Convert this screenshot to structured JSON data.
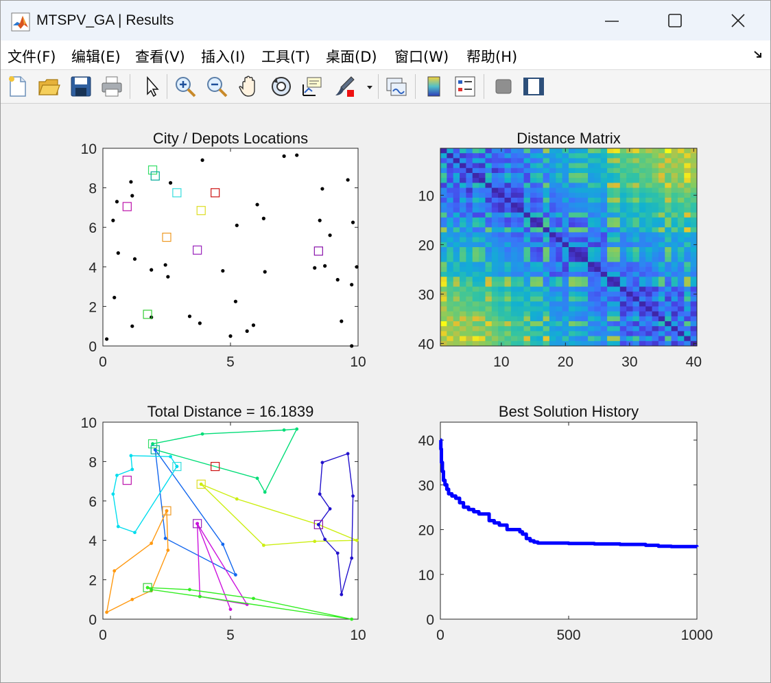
{
  "window": {
    "title": "MTSPV_GA | Results",
    "app_icon": "matlab-icon",
    "controls": [
      "minimize-icon",
      "maximize-icon",
      "close-icon"
    ]
  },
  "menubar": {
    "items": [
      "文件(F)",
      "编辑(E)",
      "查看(V)",
      "插入(I)",
      "工具(T)",
      "桌面(D)",
      "窗口(W)",
      "帮助(H)"
    ],
    "corner_icon": "dock-arrow-icon"
  },
  "toolbar": {
    "icons": [
      "new-figure-icon",
      "open-file-icon",
      "save-icon",
      "print-icon",
      "pointer-icon",
      "zoom-in-icon",
      "zoom-out-icon",
      "pan-icon",
      "rotate-3d-icon",
      "data-cursor-icon",
      "brush-icon",
      "link-plot-icon",
      "colorbar-icon",
      "legend-icon",
      "hide-plot-tools-icon",
      "show-plot-tools-icon"
    ]
  },
  "colors": {
    "route_blue": "#1a1ad9",
    "history_line": "#0000ff",
    "plot_background": "#ffffff",
    "figure_background": "#f0f0f0"
  },
  "chart_data": [
    {
      "type": "scatter",
      "title": "City / Depots Locations",
      "xlim": [
        0,
        10
      ],
      "ylim": [
        0,
        10
      ],
      "xticks": [
        "0",
        "5",
        "10"
      ],
      "yticks": [
        "0",
        "2",
        "4",
        "6",
        "8",
        "10"
      ],
      "cities": [
        [
          0.15,
          0.35
        ],
        [
          0.4,
          6.35
        ],
        [
          0.45,
          2.45
        ],
        [
          0.55,
          7.3
        ],
        [
          0.6,
          4.7
        ],
        [
          1.1,
          8.3
        ],
        [
          1.15,
          7.6
        ],
        [
          1.15,
          1.0
        ],
        [
          1.25,
          4.4
        ],
        [
          1.9,
          3.85
        ],
        [
          1.9,
          1.45
        ],
        [
          2.45,
          4.1
        ],
        [
          2.55,
          3.5
        ],
        [
          2.65,
          8.25
        ],
        [
          3.4,
          1.5
        ],
        [
          3.8,
          1.15
        ],
        [
          3.9,
          9.4
        ],
        [
          4.7,
          3.8
        ],
        [
          5.2,
          2.25
        ],
        [
          5.25,
          6.1
        ],
        [
          5.0,
          0.5
        ],
        [
          5.65,
          0.75
        ],
        [
          5.9,
          1.05
        ],
        [
          6.05,
          7.15
        ],
        [
          6.3,
          6.45
        ],
        [
          6.35,
          3.75
        ],
        [
          7.1,
          9.6
        ],
        [
          7.6,
          9.65
        ],
        [
          8.3,
          3.95
        ],
        [
          8.5,
          6.35
        ],
        [
          8.6,
          7.95
        ],
        [
          8.7,
          4.05
        ],
        [
          8.9,
          5.6
        ],
        [
          9.2,
          3.35
        ],
        [
          9.35,
          1.25
        ],
        [
          9.6,
          8.4
        ],
        [
          9.75,
          3.1
        ],
        [
          9.8,
          6.25
        ],
        [
          9.75,
          0.0
        ],
        [
          9.95,
          4.0
        ]
      ],
      "depots": [
        {
          "x": 1.95,
          "y": 8.9,
          "color": "#33dd66"
        },
        {
          "x": 2.05,
          "y": 8.6,
          "color": "#00aa99"
        },
        {
          "x": 2.9,
          "y": 7.75,
          "color": "#33dddd"
        },
        {
          "x": 4.4,
          "y": 7.75,
          "color": "#cc1111"
        },
        {
          "x": 0.95,
          "y": 7.05,
          "color": "#bb11aa"
        },
        {
          "x": 3.85,
          "y": 6.85,
          "color": "#dddd22"
        },
        {
          "x": 2.5,
          "y": 5.5,
          "color": "#ee9922"
        },
        {
          "x": 3.7,
          "y": 4.85,
          "color": "#9922bb"
        },
        {
          "x": 8.45,
          "y": 4.8,
          "color": "#8811aa"
        },
        {
          "x": 1.75,
          "y": 1.6,
          "color": "#33cc33"
        }
      ]
    },
    {
      "type": "heatmap",
      "title": "Distance Matrix",
      "xlim": [
        0.5,
        40.5
      ],
      "ylim": [
        0.5,
        40.5
      ],
      "xticks": [
        "10",
        "20",
        "30",
        "40"
      ],
      "yticks": [
        "10",
        "20",
        "30",
        "40"
      ],
      "size": 40,
      "colormap": "parula"
    },
    {
      "type": "line",
      "title": "Total Distance = 16.1839",
      "xlim": [
        0,
        10
      ],
      "ylim": [
        0,
        10
      ],
      "xticks": [
        "0",
        "5",
        "10"
      ],
      "yticks": [
        "0",
        "2",
        "4",
        "6",
        "8",
        "10"
      ],
      "routes": [
        {
          "color": "#00dd77",
          "points": [
            [
              1.95,
              8.9
            ],
            [
              3.9,
              9.4
            ],
            [
              7.1,
              9.6
            ],
            [
              7.6,
              9.65
            ],
            [
              6.35,
              6.45
            ],
            [
              6.05,
              7.15
            ],
            [
              2.05,
              8.6
            ]
          ]
        },
        {
          "color": "#1166ee",
          "points": [
            [
              2.05,
              8.6
            ],
            [
              2.45,
              4.1
            ],
            [
              5.2,
              2.25
            ],
            [
              4.7,
              3.8
            ],
            [
              2.05,
              8.6
            ]
          ]
        },
        {
          "color": "#00ddee",
          "points": [
            [
              2.9,
              7.75
            ],
            [
              2.65,
              8.25
            ],
            [
              1.1,
              8.3
            ],
            [
              1.15,
              7.6
            ],
            [
              0.55,
              7.3
            ],
            [
              0.4,
              6.35
            ],
            [
              0.6,
              4.7
            ],
            [
              1.25,
              4.4
            ],
            [
              2.9,
              7.75
            ]
          ]
        },
        {
          "color": "#ccee11",
          "points": [
            [
              3.85,
              6.85
            ],
            [
              5.25,
              6.1
            ],
            [
              8.45,
              4.8
            ],
            [
              9.95,
              4.0
            ],
            [
              8.3,
              3.95
            ],
            [
              6.3,
              3.75
            ],
            [
              3.85,
              6.85
            ]
          ]
        },
        {
          "color": "#ff9911",
          "points": [
            [
              2.5,
              5.5
            ],
            [
              1.9,
              3.85
            ],
            [
              0.45,
              2.45
            ],
            [
              0.15,
              0.35
            ],
            [
              1.15,
              1.0
            ],
            [
              1.9,
              1.45
            ],
            [
              2.55,
              3.5
            ],
            [
              2.5,
              5.5
            ]
          ]
        },
        {
          "color": "#cc11dd",
          "points": [
            [
              3.7,
              4.85
            ],
            [
              3.8,
              1.15
            ],
            [
              5.65,
              0.75
            ],
            [
              3.7,
              4.85
            ],
            [
              5.0,
              0.5
            ],
            [
              3.7,
              4.85
            ]
          ]
        },
        {
          "color": "#2211cc",
          "points": [
            [
              8.45,
              4.8
            ],
            [
              8.9,
              5.6
            ],
            [
              8.5,
              6.35
            ],
            [
              8.6,
              7.95
            ],
            [
              9.6,
              8.4
            ],
            [
              9.8,
              6.25
            ],
            [
              9.75,
              3.1
            ],
            [
              9.35,
              1.25
            ],
            [
              9.2,
              3.35
            ],
            [
              8.7,
              4.05
            ],
            [
              8.45,
              4.8
            ]
          ]
        },
        {
          "color": "#33ee22",
          "points": [
            [
              1.75,
              1.6
            ],
            [
              3.4,
              1.5
            ],
            [
              5.9,
              1.05
            ],
            [
              9.75,
              0.0
            ],
            [
              3.8,
              1.15
            ],
            [
              1.9,
              1.5
            ],
            [
              1.75,
              1.6
            ]
          ]
        }
      ]
    },
    {
      "type": "line",
      "title": "Best Solution History",
      "xlim": [
        0,
        1000
      ],
      "ylim": [
        0,
        44
      ],
      "xticks": [
        "0",
        "500",
        "1000"
      ],
      "yticks": [
        "0",
        "10",
        "20",
        "30",
        "40"
      ],
      "x": [
        0,
        2,
        4,
        8,
        12,
        18,
        25,
        32,
        45,
        60,
        75,
        90,
        110,
        130,
        150,
        175,
        190,
        210,
        230,
        260,
        290,
        310,
        320,
        335,
        350,
        365,
        380,
        400,
        500,
        600,
        700,
        800,
        850,
        900,
        1000
      ],
      "y": [
        40,
        38,
        35,
        33,
        31,
        30,
        29,
        28,
        27.5,
        27,
        26,
        25,
        24.5,
        24,
        23.5,
        23.5,
        22,
        21.5,
        21,
        20,
        20,
        19.5,
        19,
        18,
        17.5,
        17.2,
        17,
        17,
        16.9,
        16.8,
        16.7,
        16.5,
        16.3,
        16.2,
        16.18
      ]
    }
  ]
}
